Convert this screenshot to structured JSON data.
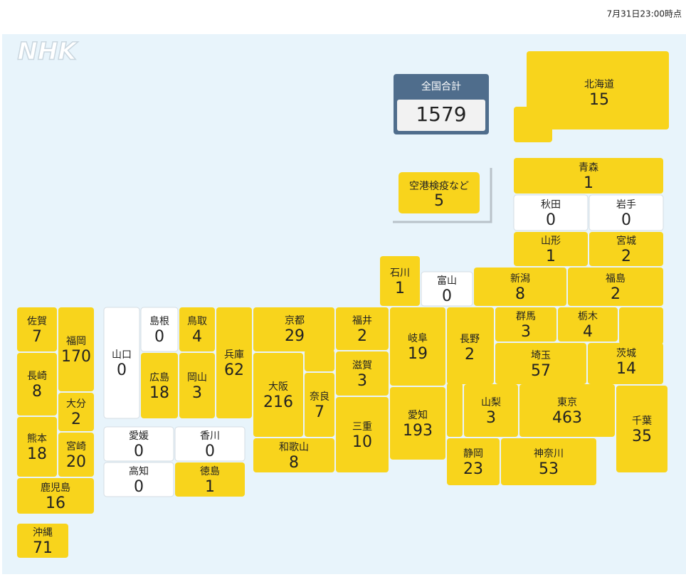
{
  "header": {
    "timestamp": "7月31日23:00時点",
    "logo": "NHK"
  },
  "total": {
    "label": "全国合計",
    "value": 1579
  },
  "airport": {
    "label": "空港検疫など",
    "value": 5
  },
  "colors": {
    "positive": "#f8d41c",
    "zero": "#ffffff"
  },
  "prefectures": [
    {
      "name": "北海道",
      "value": 15
    },
    {
      "name": "青森",
      "value": 1
    },
    {
      "name": "秋田",
      "value": 0
    },
    {
      "name": "岩手",
      "value": 0
    },
    {
      "name": "山形",
      "value": 1
    },
    {
      "name": "宮城",
      "value": 2
    },
    {
      "name": "新潟",
      "value": 8
    },
    {
      "name": "福島",
      "value": 2
    },
    {
      "name": "石川",
      "value": 1
    },
    {
      "name": "富山",
      "value": 0
    },
    {
      "name": "群馬",
      "value": 3
    },
    {
      "name": "栃木",
      "value": 4
    },
    {
      "name": "茨城",
      "value": 14
    },
    {
      "name": "埼玉",
      "value": 57
    },
    {
      "name": "長野",
      "value": 2
    },
    {
      "name": "岐阜",
      "value": 19
    },
    {
      "name": "愛知",
      "value": 193
    },
    {
      "name": "福井",
      "value": 2
    },
    {
      "name": "滋賀",
      "value": 3
    },
    {
      "name": "三重",
      "value": 10
    },
    {
      "name": "京都",
      "value": 29
    },
    {
      "name": "大阪",
      "value": 216
    },
    {
      "name": "奈良",
      "value": 7
    },
    {
      "name": "和歌山",
      "value": 8
    },
    {
      "name": "兵庫",
      "value": 62
    },
    {
      "name": "鳥取",
      "value": 4
    },
    {
      "name": "岡山",
      "value": 3
    },
    {
      "name": "島根",
      "value": 0
    },
    {
      "name": "広島",
      "value": 18
    },
    {
      "name": "山口",
      "value": 0
    },
    {
      "name": "愛媛",
      "value": 0
    },
    {
      "name": "香川",
      "value": 0
    },
    {
      "name": "高知",
      "value": 0
    },
    {
      "name": "徳島",
      "value": 1
    },
    {
      "name": "佐賀",
      "value": 7
    },
    {
      "name": "福岡",
      "value": 170
    },
    {
      "name": "長崎",
      "value": 8
    },
    {
      "name": "大分",
      "value": 2
    },
    {
      "name": "熊本",
      "value": 18
    },
    {
      "name": "宮崎",
      "value": 20
    },
    {
      "name": "鹿児島",
      "value": 16
    },
    {
      "name": "沖縄",
      "value": 71
    },
    {
      "name": "山梨",
      "value": 3
    },
    {
      "name": "東京",
      "value": 463
    },
    {
      "name": "千葉",
      "value": 35
    },
    {
      "name": "静岡",
      "value": 23
    },
    {
      "name": "神奈川",
      "value": 53
    }
  ]
}
